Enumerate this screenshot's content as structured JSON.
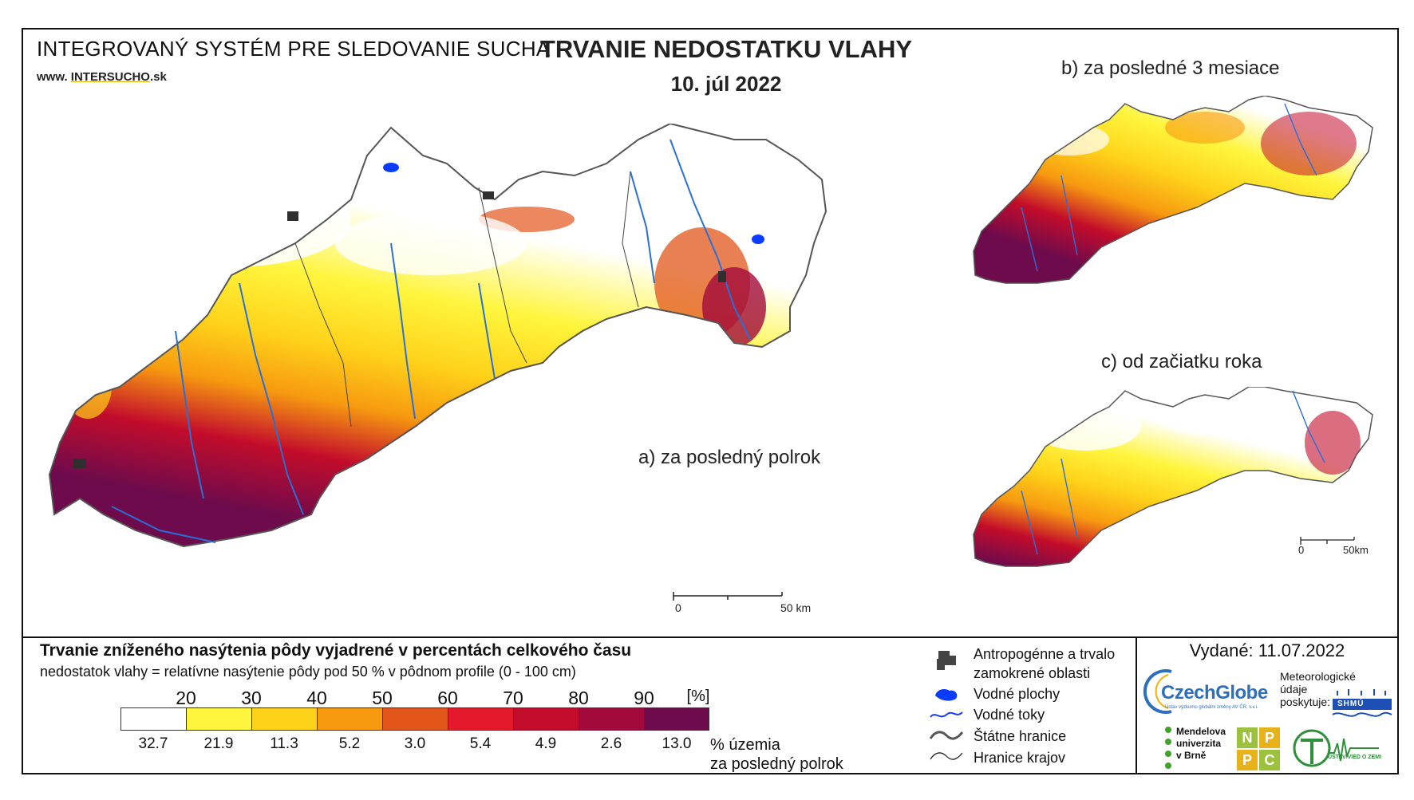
{
  "header": {
    "system_title": "INTEGROVANÝ SYSTÉM PRE SLEDOVANIE SUCHA",
    "website": "www.",
    "website_main": "INTERSUCHO",
    "website_tld": ".sk",
    "title": "TRVANIE NEDOSTATKU VLAHY",
    "date": "10. júl 2022"
  },
  "maps": {
    "a_label": "a) za posledný polrok",
    "b_label": "b) za posledné 3 mesiace",
    "c_label": "c) od začiatku roka",
    "scale_main": {
      "zero": "0",
      "end": "50 km"
    },
    "scale_small": {
      "zero": "0",
      "end": "50km"
    }
  },
  "legend": {
    "title": "Trvanie zníženého nasýtenia pôdy vyjadrené v percentách celkového času",
    "subtitle": "nedostatok vlahy = relatívne nasýtenie pôdy pod 50 % v pôdnom profile (0 - 100 cm)",
    "thresholds": [
      "20",
      "30",
      "40",
      "50",
      "60",
      "70",
      "80",
      "90"
    ],
    "unit": "[%]",
    "classes": [
      {
        "color": "#ffffff",
        "share": "32.7"
      },
      {
        "color": "#fff53d",
        "share": "21.9"
      },
      {
        "color": "#ffd21a",
        "share": "11.3"
      },
      {
        "color": "#f79a10",
        "share": "5.2"
      },
      {
        "color": "#e2561b",
        "share": "3.0"
      },
      {
        "color": "#e4192b",
        "share": "5.4"
      },
      {
        "color": "#c30c2b",
        "share": "4.9"
      },
      {
        "color": "#a10a3a",
        "share": "2.6"
      },
      {
        "color": "#6e0b4c",
        "share": "13.0"
      }
    ],
    "share_label_1": "% územia",
    "share_label_2": "za posledný polrok"
  },
  "symbols": {
    "anthropogenic_1": "Antropogénne a trvalo",
    "anthropogenic_2": "zamokrené oblasti",
    "water_bodies": "Vodné plochy",
    "rivers": "Vodné toky",
    "state_border": "Štátne hranice",
    "region_border": "Hranice krajov"
  },
  "footer": {
    "issued": "Vydané: 11.07.2022",
    "met_data_1": "Meteorologické",
    "met_data_2": "údaje",
    "met_data_3": "poskytuje:",
    "czechglobe": "CzechGlobe",
    "czechglobe_sub": "Ústav výzkumu globální změny AV ČR, v.v.i.",
    "shmu": "SHMÚ",
    "mendel_1": "Mendelova",
    "mendel_2": "univerzita",
    "mendel_3": "v Brně",
    "nppc": [
      "N",
      "P",
      "P",
      "C"
    ],
    "uvz": "ÚSTAV VIED O ZEMI"
  }
}
